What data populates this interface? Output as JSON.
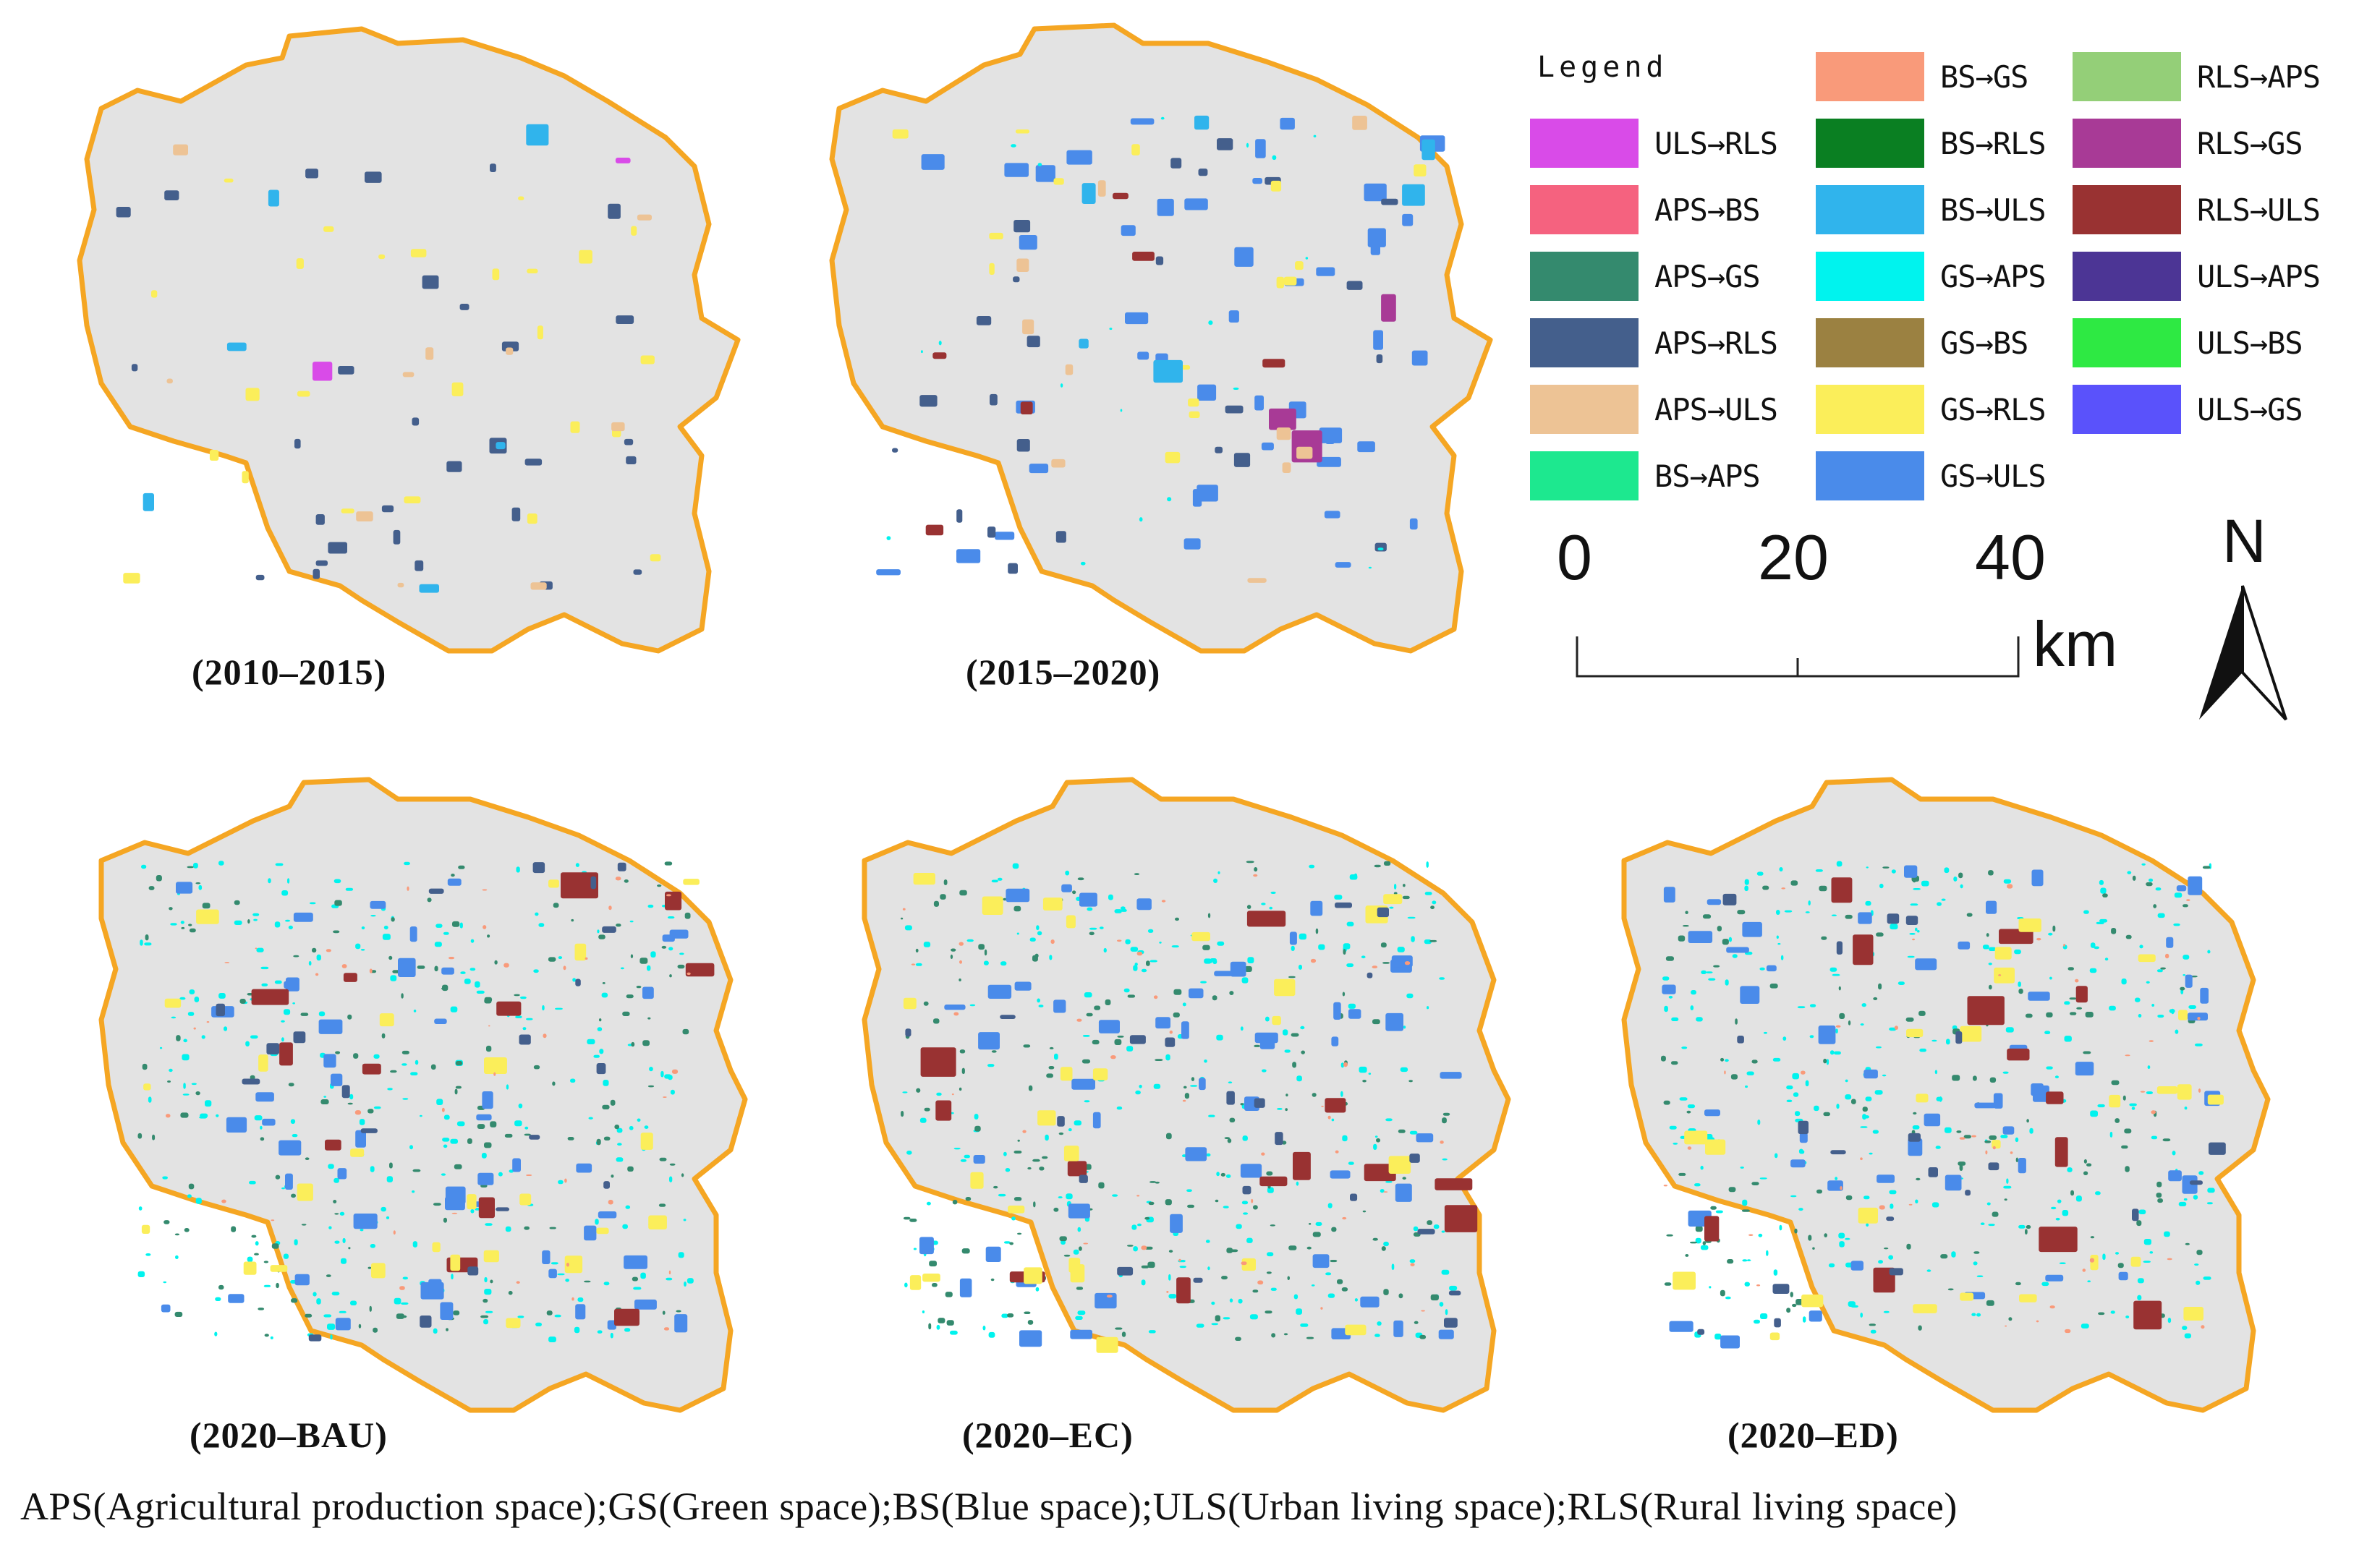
{
  "panels": [
    {
      "id": "p1",
      "caption": "(2010–2015)"
    },
    {
      "id": "p2",
      "caption": "(2015–2020)"
    },
    {
      "id": "p3",
      "caption": "(2020–BAU)"
    },
    {
      "id": "p4",
      "caption": "(2020–EC)"
    },
    {
      "id": "p5",
      "caption": "(2020–ED)"
    }
  ],
  "legend": {
    "title": "Legend",
    "items": [
      {
        "label": "ULS→RLS",
        "color": "#d94be8"
      },
      {
        "label": "APS→BS",
        "color": "#f5627f"
      },
      {
        "label": "APS→GS",
        "color": "#348a6e"
      },
      {
        "label": "APS→RLS",
        "color": "#445f8c"
      },
      {
        "label": "APS→ULS",
        "color": "#edc395"
      },
      {
        "label": "BS→APS",
        "color": "#1de88f"
      },
      {
        "label": "BS→GS",
        "color": "#f99a7a"
      },
      {
        "label": "BS→RLS",
        "color": "#0a7f22"
      },
      {
        "label": "BS→ULS",
        "color": "#30b4ec"
      },
      {
        "label": "GS→APS",
        "color": "#00f3ee"
      },
      {
        "label": "GS→BS",
        "color": "#9b8141"
      },
      {
        "label": "GS→RLS",
        "color": "#fbee5a"
      },
      {
        "label": "GS→ULS",
        "color": "#4a8bea"
      },
      {
        "label": "RLS→APS",
        "color": "#94cf78"
      },
      {
        "label": "RLS→GS",
        "color": "#a83a96"
      },
      {
        "label": "RLS→ULS",
        "color": "#993232"
      },
      {
        "label": "ULS→APS",
        "color": "#4c3595"
      },
      {
        "label": "ULS→BS",
        "color": "#2ee943"
      },
      {
        "label": "ULS→GS",
        "color": "#5a52fb"
      }
    ]
  },
  "scale_bar": {
    "labels": [
      "0",
      "20",
      "40"
    ],
    "unit": "km"
  },
  "north_arrow": {
    "letter": "N"
  },
  "footnote": "APS(Agricultural production space);GS(Green space);BS(Blue space);ULS(Urban living space);RLS(Rural living space)",
  "colors": {
    "map_fill": "#e3e3e3",
    "boundary": "#f5a623"
  }
}
